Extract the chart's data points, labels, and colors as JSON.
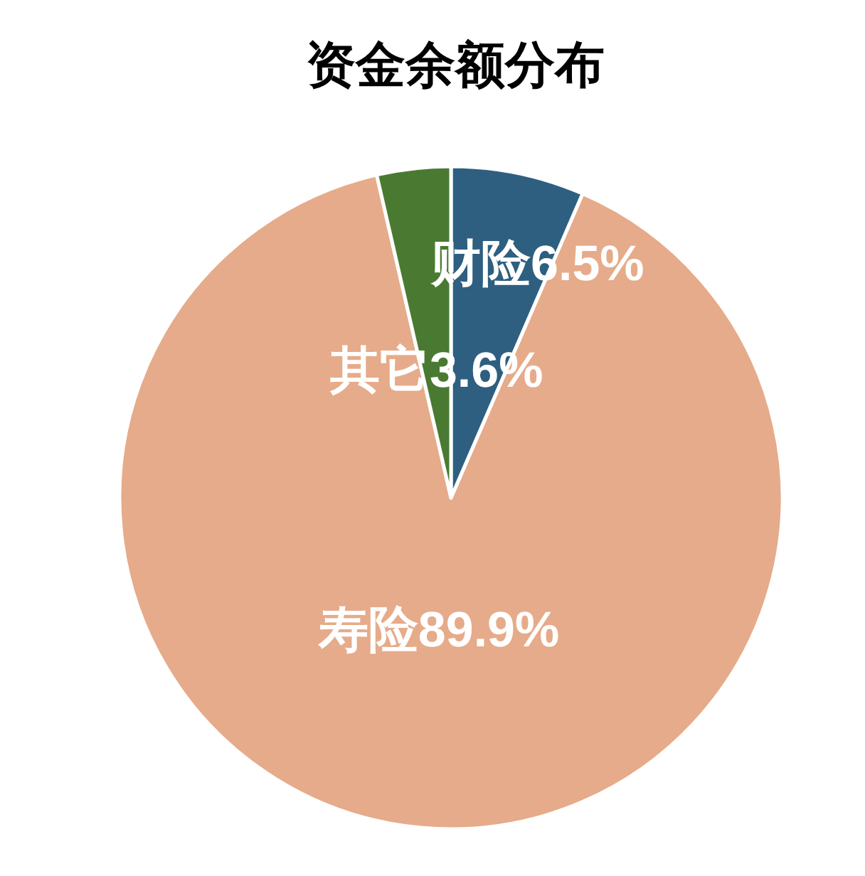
{
  "chart_data": {
    "type": "pie",
    "title": "资金余额分布",
    "categories": [
      "财险",
      "寿险",
      "其它"
    ],
    "values": [
      6.5,
      89.9,
      3.6
    ],
    "colors": [
      "#2e5f80",
      "#e6ab8a",
      "#4a7a32"
    ],
    "value_labels": [
      "6.5%",
      "89.9%",
      "3.6%"
    ]
  }
}
